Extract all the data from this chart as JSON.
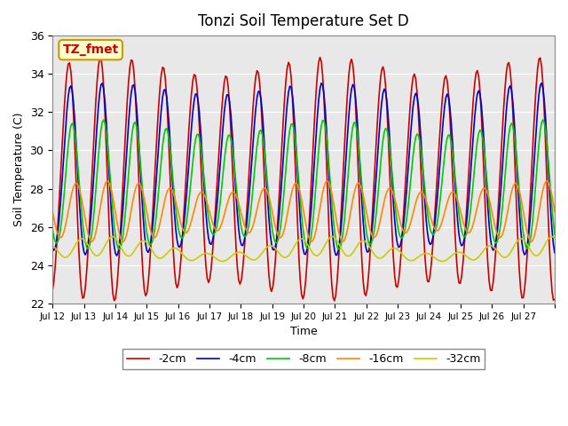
{
  "title": "Tonzi Soil Temperature Set D",
  "xlabel": "Time",
  "ylabel": "Soil Temperature (C)",
  "ylim": [
    22,
    36
  ],
  "series_labels": [
    "-2cm",
    "-4cm",
    "-8cm",
    "-16cm",
    "-32cm"
  ],
  "series_colors": [
    "#cc0000",
    "#0000cc",
    "#00cc00",
    "#ff8800",
    "#cccc00"
  ],
  "bg_color": "#ffffff",
  "plot_bg_color": "#e8e8e8",
  "grid_color": "#ffffff",
  "annotation_text": "TZ_fmet",
  "annotation_bg": "#ffffcc",
  "annotation_border": "#cc9900",
  "xtick_labels": [
    "Jul 12",
    "Jul 13",
    "Jul 14",
    "Jul 15",
    "Jul 16",
    "Jul 17",
    "Jul 18",
    "Jul 19",
    "Jul 20",
    "Jul 21",
    "Jul 22",
    "Jul 23",
    "Jul 24",
    "Jul 25",
    "Jul 26",
    "Jul 27"
  ],
  "ytick_vals": [
    22,
    24,
    26,
    28,
    30,
    32,
    34,
    36
  ],
  "n_points": 384
}
